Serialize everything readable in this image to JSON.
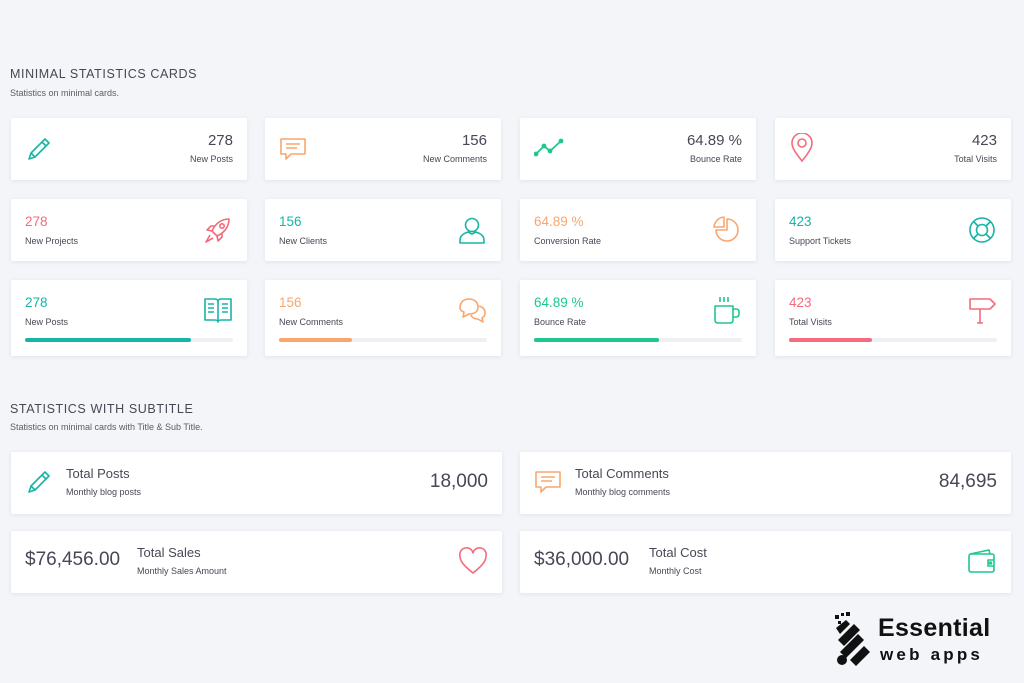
{
  "colors": {
    "teal": "#16b5a6",
    "orange": "#f9a66e",
    "pink": "#f46b7d",
    "green": "#1ec78f",
    "text": "#464855"
  },
  "section1": {
    "title": "MINIMAL STATISTICS CARDS",
    "subtitle": "Statistics on minimal cards."
  },
  "row1": [
    {
      "value": "278",
      "label": "New Posts",
      "icon": "pencil-icon"
    },
    {
      "value": "156",
      "label": "New Comments",
      "icon": "speech-bubble-icon"
    },
    {
      "value": "64.89 %",
      "label": "Bounce Rate",
      "icon": "trend-line-icon"
    },
    {
      "value": "423",
      "label": "Total Visits",
      "icon": "map-pin-icon"
    }
  ],
  "row2": [
    {
      "value": "278",
      "label": "New Projects",
      "icon": "rocket-icon"
    },
    {
      "value": "156",
      "label": "New Clients",
      "icon": "user-icon"
    },
    {
      "value": "64.89 %",
      "label": "Conversion Rate",
      "icon": "pie-chart-icon"
    },
    {
      "value": "423",
      "label": "Support Tickets",
      "icon": "lifebuoy-icon"
    }
  ],
  "row3": [
    {
      "value": "278",
      "label": "New Posts",
      "icon": "open-book-icon",
      "progress": 0.8
    },
    {
      "value": "156",
      "label": "New Comments",
      "icon": "chat-bubbles-icon",
      "progress": 0.35
    },
    {
      "value": "64.89 %",
      "label": "Bounce Rate",
      "icon": "coffee-cup-icon",
      "progress": 0.6
    },
    {
      "value": "423",
      "label": "Total Visits",
      "icon": "signpost-icon",
      "progress": 0.4
    }
  ],
  "section2": {
    "title": "STATISTICS WITH SUBTITLE",
    "subtitle": "Statistics on minimal cards with Title & Sub Title."
  },
  "subtitle_cards": [
    {
      "title": "Total Posts",
      "subtitle": "Monthly blog posts",
      "value": "18,000",
      "icon": "pencil-icon"
    },
    {
      "title": "Total Comments",
      "subtitle": "Monthly blog comments",
      "value": "84,695",
      "icon": "speech-bubble-icon"
    },
    {
      "title": "Total Sales",
      "subtitle": "Monthly Sales Amount",
      "value": "$76,456.00",
      "icon": "heart-icon"
    },
    {
      "title": "Total Cost",
      "subtitle": "Monthly Cost",
      "value": "$36,000.00",
      "icon": "wallet-icon"
    }
  ],
  "logo": {
    "line1": "Essential",
    "line2": "web apps"
  }
}
